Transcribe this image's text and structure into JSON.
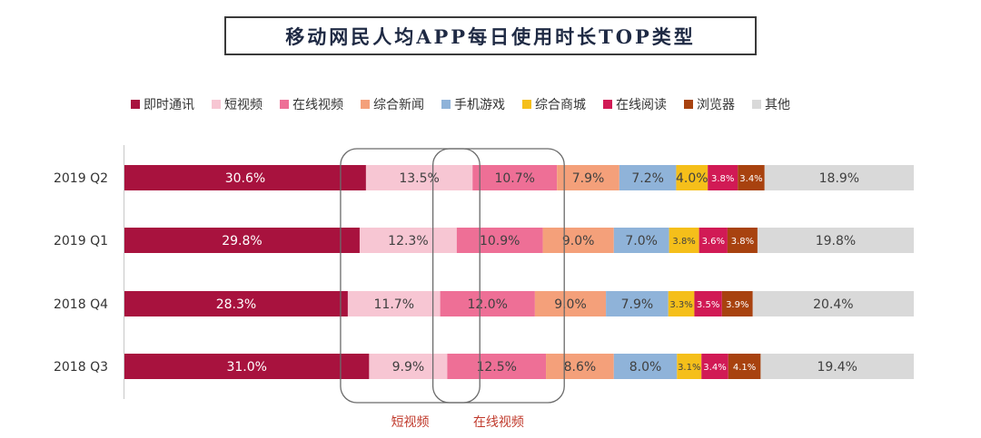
{
  "chart_data": {
    "type": "bar",
    "orientation": "horizontal",
    "stacked": true,
    "percent": true,
    "title": "移动网民人均APP每日使用时长TOP类型",
    "legend_position": "top",
    "categories": [
      "2019 Q2",
      "2019 Q1",
      "2018 Q4",
      "2018 Q3"
    ],
    "series": [
      {
        "name": "即时通讯",
        "color": "#a8123e",
        "values": [
          30.6,
          29.8,
          28.3,
          31.0
        ],
        "labels": [
          "30.6%",
          "29.8%",
          "28.3%",
          "31.0%"
        ]
      },
      {
        "name": "短视频",
        "color": "#f7c6d3",
        "values": [
          13.5,
          12.3,
          11.7,
          9.9
        ],
        "labels": [
          "13.5%",
          "12.3%",
          "11.7%",
          "9.9%"
        ]
      },
      {
        "name": "在线视频",
        "color": "#ee6f96",
        "values": [
          10.7,
          10.9,
          12.0,
          12.5
        ],
        "labels": [
          "10.7%",
          "10.9%",
          "12.0%",
          "12.5%"
        ]
      },
      {
        "name": "综合新闻",
        "color": "#f4a07a",
        "values": [
          7.9,
          9.0,
          9.0,
          8.6
        ],
        "labels": [
          "7.9%",
          "9.0%",
          "9.0%",
          "8.6%"
        ]
      },
      {
        "name": "手机游戏",
        "color": "#8fb3d9",
        "values": [
          7.2,
          7.0,
          7.9,
          8.0
        ],
        "labels": [
          "7.2%",
          "7.0%",
          "7.9%",
          "8.0%"
        ]
      },
      {
        "name": "综合商城",
        "color": "#f5bf1a",
        "values": [
          4.0,
          3.8,
          3.3,
          3.1
        ],
        "labels": [
          "4.0%",
          "3.8%",
          "3.3%",
          "3.1%"
        ]
      },
      {
        "name": "在线阅读",
        "color": "#d11a55",
        "values": [
          3.8,
          3.6,
          3.5,
          3.4
        ],
        "labels": [
          "3.8%",
          "3.6%",
          "3.5%",
          "3.4%"
        ]
      },
      {
        "name": "浏览器",
        "color": "#a8420f",
        "values": [
          3.4,
          3.8,
          3.9,
          4.1
        ],
        "labels": [
          "3.4%",
          "3.8%",
          "3.9%",
          "4.1%"
        ]
      },
      {
        "name": "其他",
        "color": "#d9d9d9",
        "values": [
          18.9,
          19.8,
          20.4,
          19.4
        ],
        "labels": [
          "18.9%",
          "19.8%",
          "20.4%",
          "19.4%"
        ]
      }
    ],
    "annotations": [
      {
        "text": "短视频",
        "series": "短视频"
      },
      {
        "text": "在线视频",
        "series": "在线视频"
      }
    ]
  },
  "colors": {
    "title_border": "#3a3a3a",
    "title_text": "#1f2a44",
    "callout_outline": "#6b6b6b",
    "callout_text": "#c0392b",
    "label_light": "#ffffff",
    "label_dark": "#404040",
    "axis": "#c8c8c8"
  }
}
